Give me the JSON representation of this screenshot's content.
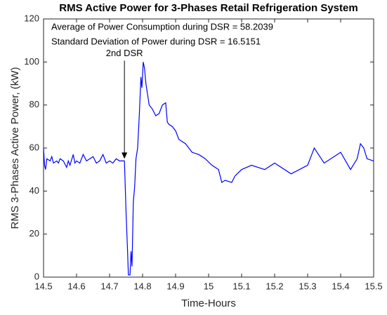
{
  "chart_data": {
    "type": "line",
    "title": "RMS Active Power for 3-Phases Retail Refrigeration System",
    "xlabel": "Time-Hours",
    "ylabel": "RMS 3-Phases Active Power, (kW)",
    "annotations": [
      {
        "text": "Average of Power Consumption during DSR = 58.2039"
      },
      {
        "text": "Standard Deviation of Power during DSR = 16.5151"
      },
      {
        "text": "2nd DSR",
        "arrow_x": 14.745,
        "arrow_y": 55
      }
    ],
    "x": [
      14.5,
      14.503,
      14.506,
      14.51,
      14.52,
      14.525,
      14.53,
      14.54,
      14.545,
      14.55,
      14.56,
      14.57,
      14.575,
      14.58,
      14.59,
      14.595,
      14.6,
      14.61,
      14.62,
      14.63,
      14.64,
      14.65,
      14.66,
      14.67,
      14.68,
      14.69,
      14.7,
      14.71,
      14.72,
      14.73,
      14.74,
      14.745,
      14.75,
      14.755,
      14.757,
      14.762,
      14.765,
      14.768,
      14.772,
      14.776,
      14.78,
      14.785,
      14.79,
      14.795,
      14.798,
      14.802,
      14.806,
      14.81,
      14.815,
      14.82,
      14.83,
      14.84,
      14.85,
      14.86,
      14.87,
      14.875,
      14.88,
      14.89,
      14.9,
      14.91,
      14.93,
      14.95,
      14.97,
      14.99,
      15.01,
      15.03,
      15.04,
      15.05,
      15.07,
      15.08,
      15.1,
      15.13,
      15.17,
      15.2,
      15.25,
      15.3,
      15.32,
      15.35,
      15.4,
      15.43,
      15.45,
      15.46,
      15.47,
      15.48,
      15.5
    ],
    "series": [
      {
        "color": "#0000ff",
        "values": [
          60,
          52,
          50,
          55,
          54,
          56,
          53,
          54,
          53,
          55,
          54,
          51,
          54,
          52,
          57,
          53,
          54,
          53,
          57,
          54,
          55,
          56,
          53,
          54,
          57,
          53,
          54,
          53,
          55,
          54,
          54,
          54,
          30,
          10,
          1,
          1,
          12,
          5,
          35,
          42,
          55,
          60,
          75,
          93,
          88,
          100,
          97,
          90,
          85,
          80,
          78,
          75,
          76,
          80,
          81,
          72,
          71,
          70,
          68,
          64,
          62,
          58,
          57,
          55,
          52,
          50,
          44,
          45,
          44,
          47,
          50,
          52,
          50,
          53,
          48,
          52,
          60,
          53,
          58,
          50,
          55,
          62,
          60,
          55,
          54
        ]
      }
    ],
    "xlim": [
      14.5,
      15.5
    ],
    "xticks": [
      14.5,
      14.6,
      14.7,
      14.8,
      14.9,
      15,
      15.1,
      15.2,
      15.3,
      15.4,
      15.5
    ],
    "ylim": [
      0,
      120
    ],
    "yticks": [
      0,
      20,
      40,
      60,
      80,
      100,
      120
    ]
  }
}
